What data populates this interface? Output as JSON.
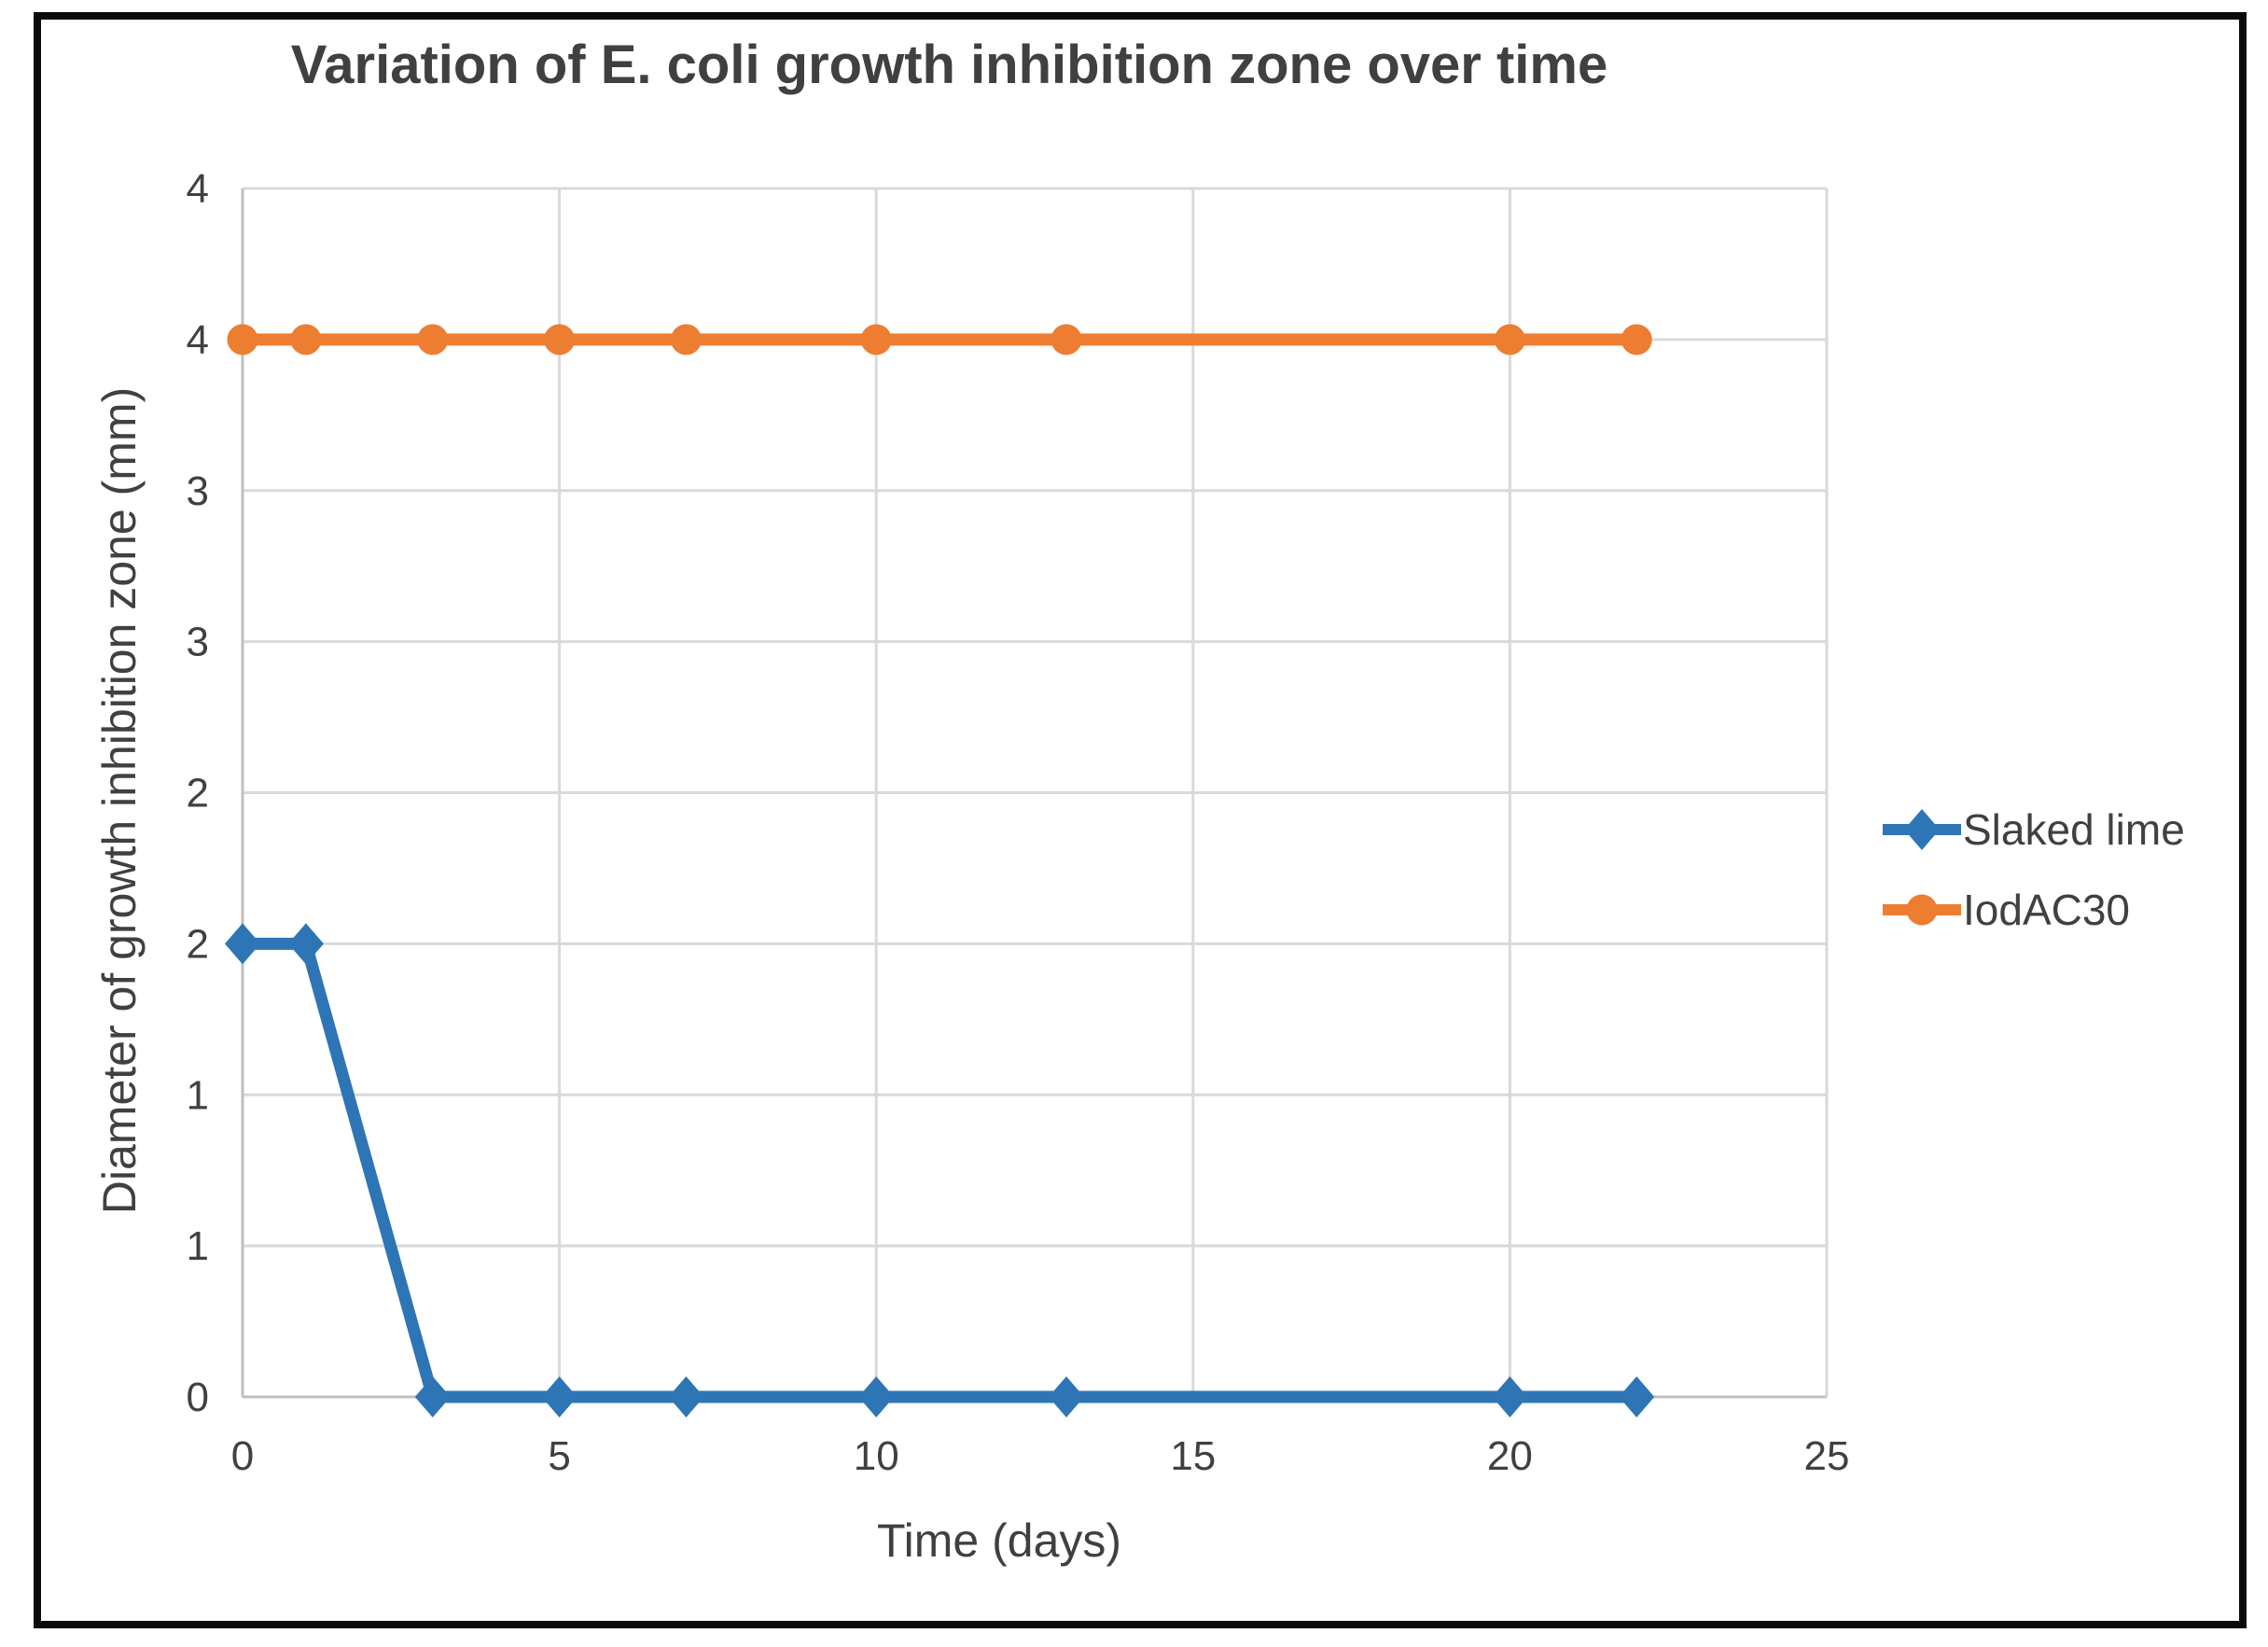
{
  "frame": {
    "border_color": "#0b0b0b",
    "background": "#ffffff"
  },
  "chart_data": {
    "type": "line",
    "title": "Variation of E. coli growth inhibition zone over time",
    "xlabel": "Time (days)",
    "ylabel": "Diameter of growth inhibition zone (mm)",
    "x": [
      0,
      1,
      3,
      5,
      7,
      10,
      13,
      20,
      22
    ],
    "series": [
      {
        "name": "Slaked lime",
        "color": "#2E75B6",
        "marker": "diamond",
        "values": [
          1.5,
          1.5,
          0,
          0,
          0,
          0,
          0,
          0,
          0
        ]
      },
      {
        "name": "IodAC30",
        "color": "#ED7D31",
        "marker": "circle",
        "values": [
          3.5,
          3.5,
          3.5,
          3.5,
          3.5,
          3.5,
          3.5,
          3.5,
          3.5
        ]
      }
    ],
    "xlim": [
      0,
      25
    ],
    "ylim": [
      0,
      4
    ],
    "x_tick_values": [
      0,
      5,
      10,
      15,
      20,
      25
    ],
    "x_tick_labels": [
      "0",
      "5",
      "10",
      "15",
      "20",
      "25"
    ],
    "y_tick_step": 0.5,
    "y_tick_labels_bottom_to_top": [
      "0",
      "1",
      "1",
      "2",
      "2",
      "3",
      "3",
      "4",
      "4"
    ],
    "grid": true,
    "legend_position": "right",
    "colors": {
      "grid": "#D9D9D9",
      "axis": "#BFBFBF",
      "text": "#404040"
    }
  }
}
